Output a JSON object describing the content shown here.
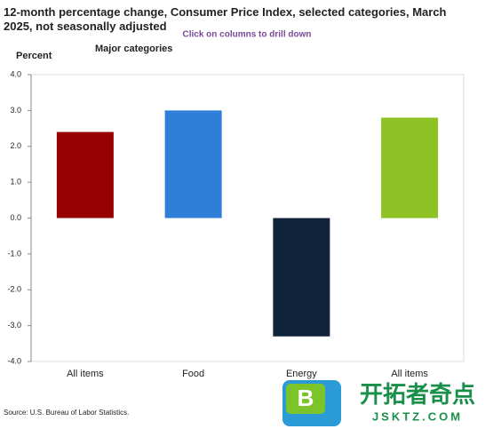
{
  "chart_data": {
    "type": "bar",
    "title": "12-month percentage change, Consumer Price Index, selected categories, March 2025, not seasonally adjusted",
    "subtitle": "Click on columns to drill down",
    "y_label": "Percent",
    "legend_title": "Major categories",
    "categories": [
      "All items",
      "Food",
      "Energy",
      "All items"
    ],
    "values": [
      2.4,
      3.0,
      -3.3,
      2.8
    ],
    "colors": [
      "#960000",
      "#2f7fd9",
      "#10233a",
      "#8ec123"
    ],
    "ylim": [
      -4,
      4
    ],
    "yticks": [
      {
        "value": 4,
        "label": "4.0"
      },
      {
        "value": 3,
        "label": "3.0"
      },
      {
        "value": 2,
        "label": "2.0"
      },
      {
        "value": 1,
        "label": "1.0"
      },
      {
        "value": 0,
        "label": "0.0"
      },
      {
        "value": -1,
        "label": "-1.0"
      },
      {
        "value": -2,
        "label": "-2.0"
      },
      {
        "value": -3,
        "label": "-3.0"
      },
      {
        "value": -4,
        "label": "-4.0"
      }
    ],
    "grid": false,
    "source": "Source: U.S. Bureau of Labor Statistics."
  },
  "watermark": {
    "icon": "B",
    "name": "开拓者奇点",
    "url": "JSKTZ.COM"
  }
}
